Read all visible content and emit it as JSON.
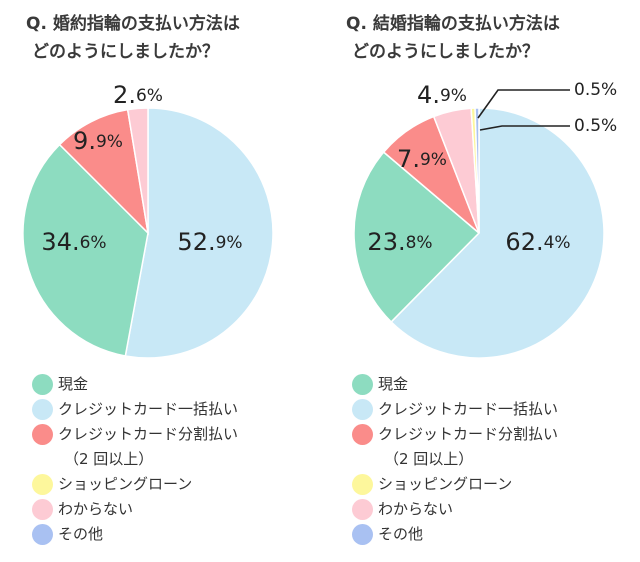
{
  "chart_data": [
    {
      "type": "pie",
      "title_lines": [
        "Q. 婚約指輪の支払い方法は",
        "どのようにしましたか？"
      ],
      "slices": [
        {
          "label": "クレジットカード一括払い",
          "value": 52.9,
          "display_main": "52.",
          "display_dec": "9%",
          "color": "#c8e8f6"
        },
        {
          "label": "現金",
          "value": 34.6,
          "display_main": "34.",
          "display_dec": "6%",
          "color": "#8ddcc0"
        },
        {
          "label": "クレジットカード分割払い（2回以上）",
          "value": 9.9,
          "display_main": "9.",
          "display_dec": "9%",
          "color": "#fa8c8a"
        },
        {
          "label": "わからない",
          "value": 2.6,
          "display_main": "2.",
          "display_dec": "6%",
          "color": "#fdcbd4"
        }
      ]
    },
    {
      "type": "pie",
      "title_lines": [
        "Q. 結婚指輪の支払い方法は",
        "どのようにしましたか？"
      ],
      "slices": [
        {
          "label": "クレジットカード一括払い",
          "value": 62.4,
          "display_main": "62.",
          "display_dec": "4%",
          "color": "#c8e8f6"
        },
        {
          "label": "現金",
          "value": 23.8,
          "display_main": "23.",
          "display_dec": "8%",
          "color": "#8ddcc0"
        },
        {
          "label": "クレジットカード分割払い（2回以上）",
          "value": 7.9,
          "display_main": "7.",
          "display_dec": "9%",
          "color": "#fa8c8a"
        },
        {
          "label": "わからない",
          "value": 4.9,
          "display_main": "4.",
          "display_dec": "9%",
          "color": "#fdcbd4"
        },
        {
          "label": "ショッピングローン",
          "value": 0.5,
          "display_main": "0.5%",
          "display_dec": "",
          "color": "#fdf79c"
        },
        {
          "label": "その他",
          "value": 0.5,
          "display_main": "0.5%",
          "display_dec": "",
          "color": "#a9c1f2"
        }
      ]
    }
  ],
  "legend": [
    {
      "label": "現金",
      "color": "#8ddcc0"
    },
    {
      "label": "クレジットカード一括払い",
      "color": "#c8e8f6"
    },
    {
      "label": "クレジットカード分割払い",
      "color": "#fa8c8a"
    },
    {
      "label": "（2 回以上）",
      "color": ""
    },
    {
      "label": "ショッピングローン",
      "color": "#fdf79c"
    },
    {
      "label": "わからない",
      "color": "#fdcbd4"
    },
    {
      "label": "その他",
      "color": "#a9c1f2"
    }
  ]
}
